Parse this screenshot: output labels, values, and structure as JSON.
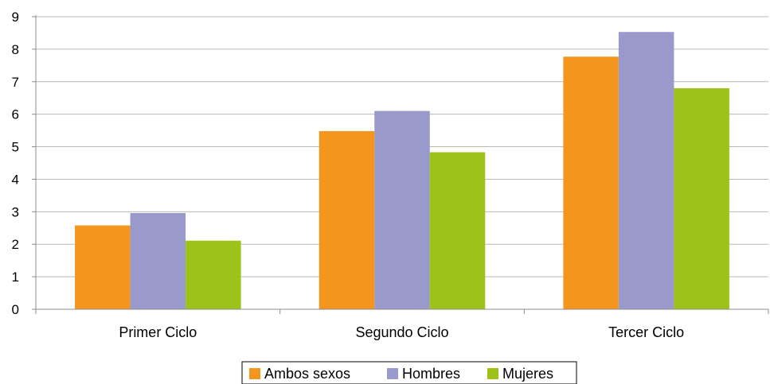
{
  "chart_data": {
    "type": "bar",
    "title": "",
    "xlabel": "",
    "ylabel": "",
    "categories": [
      "Primer Ciclo",
      "Segundo Ciclo",
      "Tercer Ciclo"
    ],
    "series": [
      {
        "name": "Ambos sexos",
        "color": "#F4961E",
        "values": [
          2.58,
          5.48,
          7.77
        ]
      },
      {
        "name": "Hombres",
        "color": "#9999CC",
        "values": [
          2.96,
          6.1,
          8.53
        ]
      },
      {
        "name": "Mujeres",
        "color": "#9DC31A",
        "values": [
          2.11,
          4.83,
          6.8
        ]
      }
    ],
    "ylim": [
      0,
      9
    ],
    "yticks": [
      0,
      1,
      2,
      3,
      4,
      5,
      6,
      7,
      8,
      9
    ],
    "grid": true,
    "legend_position": "bottom-center",
    "colors": {
      "grid": "#B8B8B8",
      "axis": "#8C8C8C"
    }
  }
}
